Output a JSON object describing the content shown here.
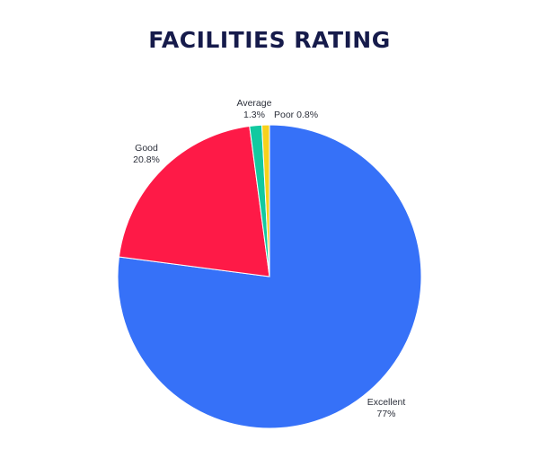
{
  "chart_data": {
    "type": "pie",
    "title": "FACILITIES RATING",
    "slices": [
      {
        "label": "Excellent",
        "value": 77,
        "display": "77%",
        "color": "#3671f8"
      },
      {
        "label": "Good",
        "value": 20.8,
        "display": "20.8%",
        "color": "#fe1a47"
      },
      {
        "label": "Average",
        "value": 1.3,
        "display": "1.3%",
        "color": "#12c9a0"
      },
      {
        "label": "Poor",
        "value": 0.8,
        "display": "0.8%",
        "color": "#f7d11b"
      }
    ],
    "start_angle_deg": 0,
    "direction": "clockwise",
    "legend": "none"
  }
}
